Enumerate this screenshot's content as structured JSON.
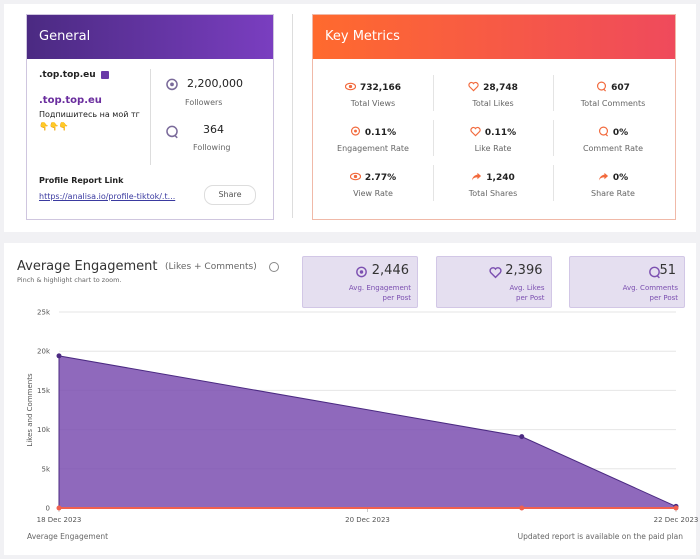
{
  "general": {
    "title": "General",
    "username": ".top.top.eu",
    "name": ".top.top.eu",
    "bio": "Подпишитесь на мой тг",
    "emojis": "👇👇👇",
    "followers": {
      "value": "2,200,000",
      "label": "Followers"
    },
    "following": {
      "value": "364",
      "label": "Following"
    },
    "report_link_label": "Profile Report Link",
    "report_link": "https://analisa.io/profile-tiktok/.t...",
    "share": "Share"
  },
  "key_metrics": {
    "title": "Key Metrics",
    "items": [
      {
        "value": "732,166",
        "label": "Total Views"
      },
      {
        "value": "28,748",
        "label": "Total Likes"
      },
      {
        "value": "607",
        "label": "Total Comments"
      },
      {
        "value": "0.11%",
        "label": "Engagement Rate"
      },
      {
        "value": "0.11%",
        "label": "Like Rate"
      },
      {
        "value": "0%",
        "label": "Comment Rate"
      },
      {
        "value": "2.77%",
        "label": "View Rate"
      },
      {
        "value": "1,240",
        "label": "Total Shares"
      },
      {
        "value": "0%",
        "label": "Share Rate"
      }
    ]
  },
  "engagement": {
    "title": "Average Engagement",
    "subtitle": "(Likes + Comments)",
    "hint": "Pinch & highlight chart to zoom.",
    "stats": [
      {
        "value": "2,446",
        "label": [
          "Avg. Engagement",
          "per Post"
        ]
      },
      {
        "value": "2,396",
        "label": [
          "Avg. Likes",
          "per Post"
        ]
      },
      {
        "value": "51",
        "label": [
          "Avg. Comments",
          "per Post"
        ]
      }
    ],
    "footer_left": "Average Engagement",
    "footer_right": "Updated report is available on the paid plan"
  },
  "chart_data": {
    "type": "area",
    "ylabel": "Likes and Comments",
    "x": [
      "2023-12-18",
      "2023-12-21",
      "2023-12-22"
    ],
    "series": [
      {
        "color": "#7b4fb0",
        "values": [
          19400,
          9100,
          200
        ]
      },
      {
        "color": "#f0614f",
        "values": [
          0,
          0,
          0
        ]
      }
    ],
    "xlim": [
      "2023-12-18",
      "2023-12-22"
    ],
    "xticks": [
      {
        "value": "2023-12-18",
        "label": "18 Dec 2023"
      },
      {
        "value": "2023-12-20",
        "label": "20 Dec 2023"
      },
      {
        "value": "2023-12-22",
        "label": "22 Dec 2023"
      }
    ],
    "ylim": [
      0,
      25000
    ],
    "yticks": [
      0,
      {
        "value": 5000,
        "label": "5k"
      },
      {
        "value": 10000,
        "label": "10k"
      },
      {
        "value": 15000,
        "label": "15k"
      },
      {
        "value": 20000,
        "label": "20k"
      },
      {
        "value": 25000,
        "label": "25k"
      }
    ],
    "grid": true
  }
}
